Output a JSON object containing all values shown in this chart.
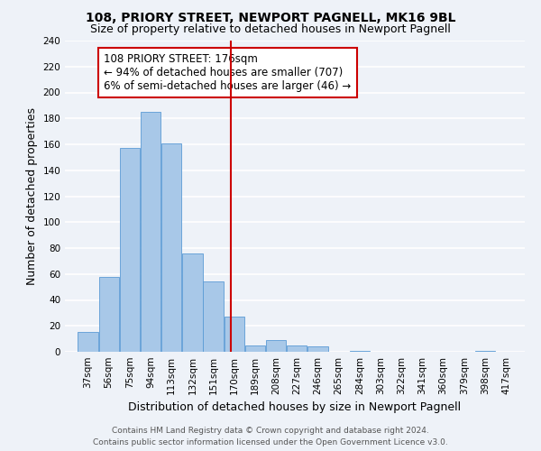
{
  "title": "108, PRIORY STREET, NEWPORT PAGNELL, MK16 9BL",
  "subtitle": "Size of property relative to detached houses in Newport Pagnell",
  "xlabel": "Distribution of detached houses by size in Newport Pagnell",
  "ylabel": "Number of detached properties",
  "bin_labels": [
    "37sqm",
    "56sqm",
    "75sqm",
    "94sqm",
    "113sqm",
    "132sqm",
    "151sqm",
    "170sqm",
    "189sqm",
    "208sqm",
    "227sqm",
    "246sqm",
    "265sqm",
    "284sqm",
    "303sqm",
    "322sqm",
    "341sqm",
    "360sqm",
    "379sqm",
    "398sqm",
    "417sqm"
  ],
  "bin_edges": [
    37,
    56,
    75,
    94,
    113,
    132,
    151,
    170,
    189,
    208,
    227,
    246,
    265,
    284,
    303,
    322,
    341,
    360,
    379,
    398,
    417
  ],
  "bar_heights": [
    15,
    58,
    157,
    185,
    161,
    76,
    54,
    27,
    5,
    9,
    5,
    4,
    0,
    1,
    0,
    0,
    0,
    0,
    0,
    1
  ],
  "bar_color": "#a8c8e8",
  "bar_edge_color": "#5b9bd5",
  "ref_line_x": 176,
  "ref_line_color": "#cc0000",
  "annotation_line1": "108 PRIORY STREET: 176sqm",
  "annotation_line2": "← 94% of detached houses are smaller (707)",
  "annotation_line3": "6% of semi-detached houses are larger (46) →",
  "annotation_box_color": "#ffffff",
  "annotation_box_edge_color": "#cc0000",
  "ylim": [
    0,
    240
  ],
  "yticks": [
    0,
    20,
    40,
    60,
    80,
    100,
    120,
    140,
    160,
    180,
    200,
    220,
    240
  ],
  "footer_line1": "Contains HM Land Registry data © Crown copyright and database right 2024.",
  "footer_line2": "Contains public sector information licensed under the Open Government Licence v3.0.",
  "bg_color": "#eef2f8",
  "grid_color": "#ffffff",
  "title_fontsize": 10,
  "subtitle_fontsize": 9,
  "axis_label_fontsize": 9,
  "tick_fontsize": 7.5,
  "annotation_fontsize": 8.5,
  "footer_fontsize": 6.5
}
